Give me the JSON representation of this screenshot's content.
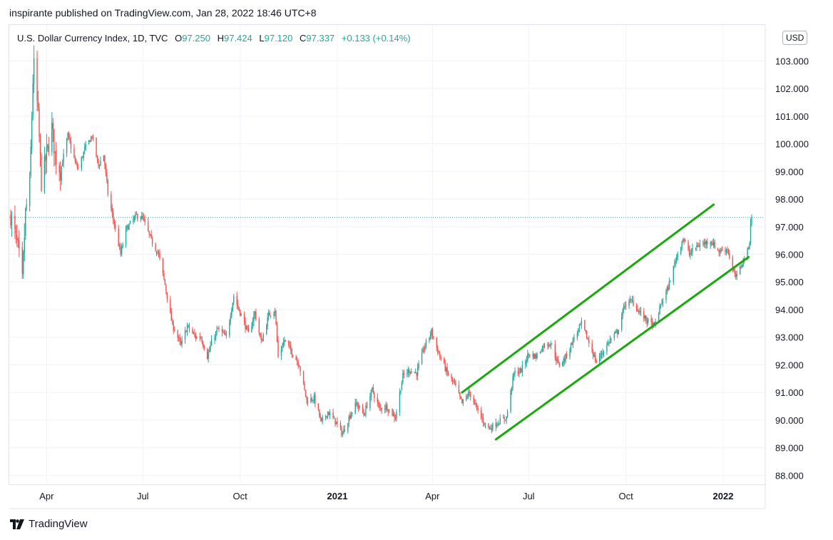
{
  "header": {
    "published_line": "inspirante published on TradingView.com, Jan 28, 2022 18:46 UTC+8"
  },
  "legend": {
    "symbol": "U.S. Dollar Currency Index, 1D, TVC",
    "open_label": "O",
    "open_value": "97.250",
    "high_label": "H",
    "high_value": "97.424",
    "low_label": "L",
    "low_value": "97.120",
    "close_label": "C",
    "close_value": "97.337",
    "change": "+0.133 (+0.14%)"
  },
  "currency_badge": "USD",
  "footer": {
    "brand": "TradingView",
    "logo_icon": "tradingview-logo-icon"
  },
  "colors": {
    "up": "#26a69a",
    "down": "#ef5350",
    "channel": "#1aa80e",
    "grid": "#f0f3fa",
    "last_price_line": "#26a69a"
  },
  "chart_data": {
    "type": "candlestick",
    "title": "U.S. Dollar Currency Index, 1D, TVC",
    "ylim": [
      87.7,
      104.3
    ],
    "y_ticks": [
      "88.000",
      "89.000",
      "90.000",
      "91.000",
      "92.000",
      "93.000",
      "94.000",
      "95.000",
      "96.000",
      "97.000",
      "98.000",
      "99.000",
      "100.000",
      "101.000",
      "102.000",
      "103.000"
    ],
    "x_ticks": [
      {
        "label": "Apr",
        "date": "2020-04-01",
        "bold": false
      },
      {
        "label": "Jul",
        "date": "2020-07-01",
        "bold": false
      },
      {
        "label": "Oct",
        "date": "2020-10-01",
        "bold": false
      },
      {
        "label": "2021",
        "date": "2021-01-01",
        "bold": true
      },
      {
        "label": "Apr",
        "date": "2021-04-01",
        "bold": false
      },
      {
        "label": "Jul",
        "date": "2021-07-01",
        "bold": false
      },
      {
        "label": "Oct",
        "date": "2021-10-01",
        "bold": false
      },
      {
        "label": "2022",
        "date": "2022-01-01",
        "bold": true
      }
    ],
    "x_range": [
      "2020-02-27",
      "2022-01-28"
    ],
    "last_price": 97.337,
    "price_path": [
      [
        "2020-02-27",
        97.4
      ],
      [
        "2020-03-05",
        96.2
      ],
      [
        "2020-03-09",
        95.0
      ],
      [
        "2020-03-12",
        97.5
      ],
      [
        "2020-03-16",
        98.5
      ],
      [
        "2020-03-19",
        102.3
      ],
      [
        "2020-03-20",
        102.8
      ],
      [
        "2020-03-24",
        101.0
      ],
      [
        "2020-03-27",
        98.6
      ],
      [
        "2020-04-01",
        99.6
      ],
      [
        "2020-04-06",
        100.6
      ],
      [
        "2020-04-09",
        99.6
      ],
      [
        "2020-04-14",
        99.0
      ],
      [
        "2020-04-21",
        100.3
      ],
      [
        "2020-04-29",
        99.2
      ],
      [
        "2020-05-01",
        99.1
      ],
      [
        "2020-05-07",
        99.8
      ],
      [
        "2020-05-14",
        100.3
      ],
      [
        "2020-05-20",
        99.2
      ],
      [
        "2020-05-25",
        99.6
      ],
      [
        "2020-05-29",
        98.2
      ],
      [
        "2020-06-05",
        96.9
      ],
      [
        "2020-06-10",
        96.0
      ],
      [
        "2020-06-15",
        96.9
      ],
      [
        "2020-06-25",
        97.4
      ],
      [
        "2020-07-01",
        97.3
      ],
      [
        "2020-07-09",
        96.5
      ],
      [
        "2020-07-16",
        96.0
      ],
      [
        "2020-07-22",
        94.9
      ],
      [
        "2020-07-29",
        93.4
      ],
      [
        "2020-07-31",
        93.3
      ],
      [
        "2020-08-06",
        92.7
      ],
      [
        "2020-08-12",
        93.4
      ],
      [
        "2020-08-20",
        93.0
      ],
      [
        "2020-08-25",
        93.0
      ],
      [
        "2020-08-31",
        92.3
      ],
      [
        "2020-09-04",
        92.8
      ],
      [
        "2020-09-10",
        93.3
      ],
      [
        "2020-09-18",
        93.0
      ],
      [
        "2020-09-25",
        94.5
      ],
      [
        "2020-10-01",
        93.9
      ],
      [
        "2020-10-09",
        93.1
      ],
      [
        "2020-10-15",
        93.9
      ],
      [
        "2020-10-21",
        92.8
      ],
      [
        "2020-10-28",
        93.8
      ],
      [
        "2020-11-03",
        94.0
      ],
      [
        "2020-11-06",
        92.3
      ],
      [
        "2020-11-12",
        92.9
      ],
      [
        "2020-11-20",
        92.4
      ],
      [
        "2020-11-26",
        92.0
      ],
      [
        "2020-12-03",
        90.7
      ],
      [
        "2020-12-10",
        90.8
      ],
      [
        "2020-12-17",
        89.9
      ],
      [
        "2020-12-23",
        90.3
      ],
      [
        "2020-12-31",
        89.9
      ],
      [
        "2021-01-06",
        89.5
      ],
      [
        "2021-01-12",
        90.1
      ],
      [
        "2021-01-19",
        90.6
      ],
      [
        "2021-01-26",
        90.2
      ],
      [
        "2021-02-03",
        91.1
      ],
      [
        "2021-02-10",
        90.4
      ],
      [
        "2021-02-16",
        90.5
      ],
      [
        "2021-02-25",
        90.1
      ],
      [
        "2021-03-04",
        91.6
      ],
      [
        "2021-03-10",
        91.8
      ],
      [
        "2021-03-17",
        91.7
      ],
      [
        "2021-03-24",
        92.6
      ],
      [
        "2021-03-31",
        93.2
      ],
      [
        "2021-04-07",
        92.4
      ],
      [
        "2021-04-15",
        91.7
      ],
      [
        "2021-04-22",
        91.3
      ],
      [
        "2021-04-29",
        90.6
      ],
      [
        "2021-05-06",
        91.0
      ],
      [
        "2021-05-13",
        90.4
      ],
      [
        "2021-05-20",
        89.9
      ],
      [
        "2021-05-25",
        89.7
      ],
      [
        "2021-06-01",
        89.9
      ],
      [
        "2021-06-10",
        90.1
      ],
      [
        "2021-06-17",
        91.7
      ],
      [
        "2021-06-24",
        91.8
      ],
      [
        "2021-07-01",
        92.4
      ],
      [
        "2021-07-08",
        92.3
      ],
      [
        "2021-07-15",
        92.7
      ],
      [
        "2021-07-22",
        92.8
      ],
      [
        "2021-07-29",
        92.0
      ],
      [
        "2021-08-04",
        92.2
      ],
      [
        "2021-08-12",
        92.9
      ],
      [
        "2021-08-20",
        93.5
      ],
      [
        "2021-08-27",
        92.8
      ],
      [
        "2021-09-03",
        92.1
      ],
      [
        "2021-09-08",
        92.4
      ],
      [
        "2021-09-16",
        92.9
      ],
      [
        "2021-09-23",
        93.2
      ],
      [
        "2021-09-30",
        94.2
      ],
      [
        "2021-10-07",
        94.3
      ],
      [
        "2021-10-14",
        93.9
      ],
      [
        "2021-10-21",
        93.6
      ],
      [
        "2021-10-28",
        93.4
      ],
      [
        "2021-11-04",
        94.3
      ],
      [
        "2021-11-10",
        94.8
      ],
      [
        "2021-11-17",
        95.8
      ],
      [
        "2021-11-24",
        96.6
      ],
      [
        "2021-11-30",
        96.0
      ],
      [
        "2021-12-07",
        96.3
      ],
      [
        "2021-12-14",
        96.4
      ],
      [
        "2021-12-20",
        96.5
      ],
      [
        "2021-12-28",
        96.1
      ],
      [
        "2022-01-05",
        96.2
      ],
      [
        "2022-01-12",
        95.2
      ],
      [
        "2022-01-14",
        95.2
      ],
      [
        "2022-01-20",
        95.8
      ],
      [
        "2022-01-25",
        96.2
      ],
      [
        "2022-01-26",
        96.5
      ],
      [
        "2022-01-27",
        97.2
      ],
      [
        "2022-01-28",
        97.337
      ]
    ],
    "trendlines": [
      {
        "name": "upper channel",
        "start": [
          "2021-04-29",
          91.0
        ],
        "end": [
          "2021-12-23",
          97.8
        ]
      },
      {
        "name": "lower channel",
        "start": [
          "2021-05-31",
          89.3
        ],
        "end": [
          "2022-01-25",
          95.9
        ]
      }
    ]
  }
}
